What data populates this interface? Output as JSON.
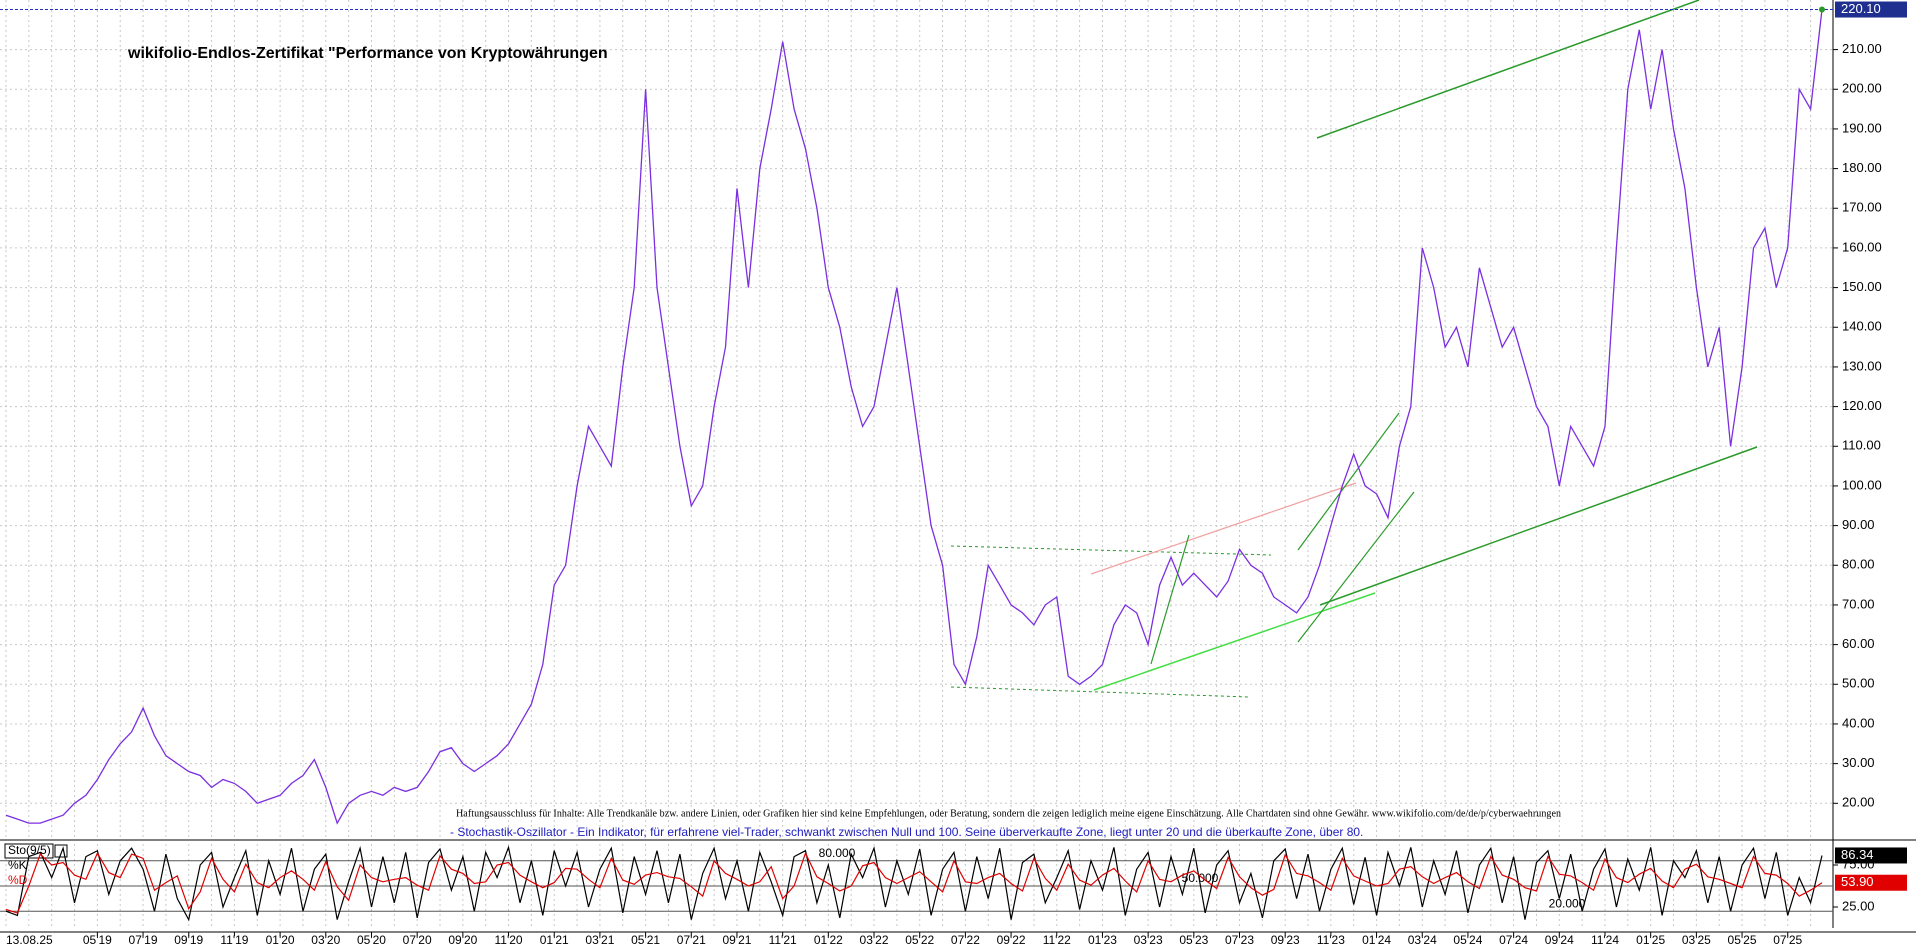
{
  "chart_data": [
    {
      "type": "line",
      "title": "wikifolio-Endlos-Zertifikat \"Performance von Kryptowährungen",
      "date_label": "13.08.25",
      "note": "Haftungsausschluss für Inhalte: Alle Trendkanäle bzw. andere Linien, oder Grafiken hier sind keine Empfehlungen, oder Beratung, sondern die zeigen lediglich meine eigene Einschätzung. Alle Chartdaten sind ohne Gewähr. www.wikifolio.com/de/de/p/cyberwaehrungen",
      "categories": [
        null,
        null,
        null,
        null,
        null,
        null,
        null,
        null,
        "05'19",
        null,
        null,
        null,
        "07'19",
        null,
        null,
        null,
        "09'19",
        null,
        null,
        null,
        "11'19",
        null,
        null,
        null,
        "01'20",
        null,
        null,
        null,
        "03'20",
        null,
        null,
        null,
        "05'20",
        null,
        null,
        null,
        "07'20",
        null,
        null,
        null,
        "09'20",
        null,
        null,
        null,
        "11'20",
        null,
        null,
        null,
        "01'21",
        null,
        null,
        null,
        "03'21",
        null,
        null,
        null,
        "05'21",
        null,
        null,
        null,
        "07'21",
        null,
        null,
        null,
        "09'21",
        null,
        null,
        null,
        "11'21",
        null,
        null,
        null,
        "01'22",
        null,
        null,
        null,
        "03'22",
        null,
        null,
        null,
        "05'22",
        null,
        null,
        null,
        "07'22",
        null,
        null,
        null,
        "09'22",
        null,
        null,
        null,
        "11'22",
        null,
        null,
        null,
        "01'23",
        null,
        null,
        null,
        "03'23",
        null,
        null,
        null,
        "05'23",
        null,
        null,
        null,
        "07'23",
        null,
        null,
        null,
        "09'23",
        null,
        null,
        null,
        "11'23",
        null,
        null,
        null,
        "01'24",
        null,
        null,
        null,
        "03'24",
        null,
        null,
        null,
        "05'24",
        null,
        null,
        null,
        "07'24",
        null,
        null,
        null,
        "09'24",
        null,
        null,
        null,
        "11'24",
        null,
        null,
        null,
        "01'25",
        null,
        null,
        null,
        "03'25",
        null,
        null,
        null,
        "05'25",
        null,
        null,
        null,
        "07'25",
        null,
        null,
        null
      ],
      "series": [
        {
          "color": "#7b2fe0",
          "last_label": "220.10",
          "values": [
            17,
            16,
            15,
            15,
            16,
            17,
            20,
            22,
            26,
            31,
            35,
            38,
            44,
            37,
            32,
            30,
            28,
            27,
            24,
            26,
            25,
            23,
            20,
            21,
            22,
            25,
            27,
            31,
            24,
            15,
            20,
            22,
            23,
            22,
            24,
            23,
            24,
            28,
            33,
            34,
            30,
            28,
            30,
            32,
            35,
            40,
            45,
            55,
            75,
            80,
            100,
            115,
            110,
            105,
            130,
            150,
            200,
            150,
            130,
            110,
            95,
            100,
            120,
            135,
            175,
            150,
            180,
            195,
            212,
            195,
            185,
            170,
            150,
            140,
            125,
            115,
            120,
            135,
            150,
            130,
            110,
            90,
            80,
            55,
            50,
            62,
            80,
            75,
            70,
            68,
            65,
            70,
            72,
            52,
            50,
            52,
            55,
            65,
            70,
            68,
            60,
            75,
            82,
            75,
            78,
            75,
            72,
            76,
            84,
            80,
            78,
            72,
            70,
            68,
            72,
            80,
            90,
            100,
            108,
            100,
            98,
            92,
            110,
            120,
            160,
            150,
            135,
            140,
            130,
            155,
            145,
            135,
            140,
            130,
            120,
            115,
            100,
            115,
            110,
            105,
            115,
            160,
            200,
            215,
            195,
            210,
            190,
            175,
            150,
            130,
            140,
            110,
            130,
            160,
            165,
            150,
            160,
            200,
            195,
            220.1
          ]
        }
      ],
      "ylim": [
        11.5,
        222.5
      ],
      "yticks": [
        {
          "value": 20,
          "label": "20.00"
        },
        {
          "value": 30,
          "label": "30.00"
        },
        {
          "value": 40,
          "label": "40.00"
        },
        {
          "value": 50,
          "label": "50.00"
        },
        {
          "value": 60,
          "label": "60.00"
        },
        {
          "value": 70,
          "label": "70.00"
        },
        {
          "value": 80,
          "label": "80.00"
        },
        {
          "value": 90,
          "label": "90.00"
        },
        {
          "value": 100,
          "label": "100.00"
        },
        {
          "value": 110,
          "label": "110.00"
        },
        {
          "value": 120,
          "label": "120.00"
        },
        {
          "value": 130,
          "label": "130.00"
        },
        {
          "value": 140,
          "label": "140.00"
        },
        {
          "value": 150,
          "label": "150.00"
        },
        {
          "value": 160,
          "label": "160.00"
        },
        {
          "value": 170,
          "label": "170.00"
        },
        {
          "value": 180,
          "label": "180.00"
        },
        {
          "value": 190,
          "label": "190.00"
        },
        {
          "value": 200,
          "label": "200.00"
        },
        {
          "value": 210,
          "label": "210.00"
        }
      ],
      "grid": true
    },
    {
      "type": "line",
      "title": "Sto(9/5)",
      "subtitle": "- Stochastik-Oszillator - Ein Indikator, für erfahrene viel-Trader, schwankt zwischen Null und 100. Seine überverkaufte Zone, liegt unter 20 und die überkaufte Zone, über 80.",
      "series": [
        {
          "name": "%K",
          "color": "#000000",
          "last_label": "86.34",
          "values": [
            20,
            15,
            85,
            90,
            60,
            95,
            30,
            85,
            92,
            40,
            80,
            95,
            70,
            20,
            88,
            35,
            10,
            75,
            90,
            25,
            60,
            92,
            15,
            80,
            40,
            95,
            20,
            70,
            88,
            10,
            55,
            95,
            25,
            85,
            30,
            90,
            12,
            78,
            94,
            45,
            85,
            20,
            90,
            60,
            96,
            30,
            80,
            15,
            92,
            50,
            90,
            25,
            70,
            95,
            18,
            85,
            40,
            92,
            30,
            88,
            10,
            65,
            95,
            35,
            80,
            20,
            90,
            55,
            15,
            85,
            92,
            30,
            75,
            12,
            88,
            60,
            95,
            25,
            80,
            40,
            94,
            15,
            70,
            90,
            20,
            85,
            35,
            95,
            10,
            78,
            88,
            30,
            60,
            92,
            22,
            80,
            45,
            96,
            15,
            70,
            90,
            25,
            85,
            40,
            95,
            18,
            75,
            92,
            30,
            65,
            12,
            80,
            94,
            35,
            88,
            20,
            70,
            95,
            28,
            84,
            15,
            90,
            50,
            96,
            25,
            80,
            40,
            92,
            18,
            75,
            95,
            30,
            85,
            10,
            78,
            92,
            35,
            88,
            20,
            70,
            94,
            25,
            82,
            45,
            96,
            15,
            80,
            60,
            92,
            30,
            85,
            20,
            75,
            95,
            35,
            90,
            15,
            60,
            30,
            86.34
          ]
        },
        {
          "name": "%D",
          "color": "#e00000",
          "last_label": "53.90",
          "values": [
            22,
            18,
            50,
            88,
            75,
            78,
            63,
            58,
            89,
            66,
            60,
            88,
            83,
            45,
            54,
            62,
            23,
            43,
            83,
            58,
            43,
            76,
            54,
            48,
            60,
            68,
            58,
            45,
            79,
            49,
            33,
            75,
            60,
            55,
            58,
            60,
            51,
            45,
            86,
            70,
            65,
            53,
            55,
            75,
            78,
            63,
            55,
            48,
            54,
            71,
            70,
            58,
            48,
            83,
            57,
            52,
            63,
            66,
            61,
            59,
            49,
            38,
            80,
            65,
            58,
            50,
            55,
            73,
            35,
            50,
            89,
            61,
            53,
            44,
            50,
            74,
            78,
            60,
            53,
            60,
            67,
            55,
            43,
            80,
            55,
            53,
            60,
            65,
            53,
            44,
            83,
            59,
            45,
            76,
            57,
            51,
            63,
            71,
            56,
            43,
            80,
            58,
            55,
            63,
            68,
            57,
            47,
            84,
            61,
            48,
            39,
            46,
            87,
            65,
            62,
            54,
            45,
            83,
            62,
            56,
            50,
            53,
            70,
            73,
            61,
            53,
            60,
            66,
            55,
            47,
            85,
            63,
            58,
            48,
            44,
            85,
            64,
            62,
            54,
            45,
            82,
            60,
            54,
            64,
            71,
            56,
            48,
            70,
            76,
            61,
            58,
            53,
            48,
            85,
            65,
            63,
            53,
            38,
            45,
            53.9
          ]
        }
      ],
      "ylim": [
        0,
        100
      ],
      "yticks": [
        {
          "value": 25,
          "label": "25.00"
        },
        {
          "value": 75,
          "label": "75.00"
        }
      ],
      "levels": [
        {
          "value": 80,
          "label": "80.000"
        },
        {
          "value": 50,
          "label": "50.000"
        },
        {
          "value": 20,
          "label": "20.000"
        }
      ]
    }
  ]
}
